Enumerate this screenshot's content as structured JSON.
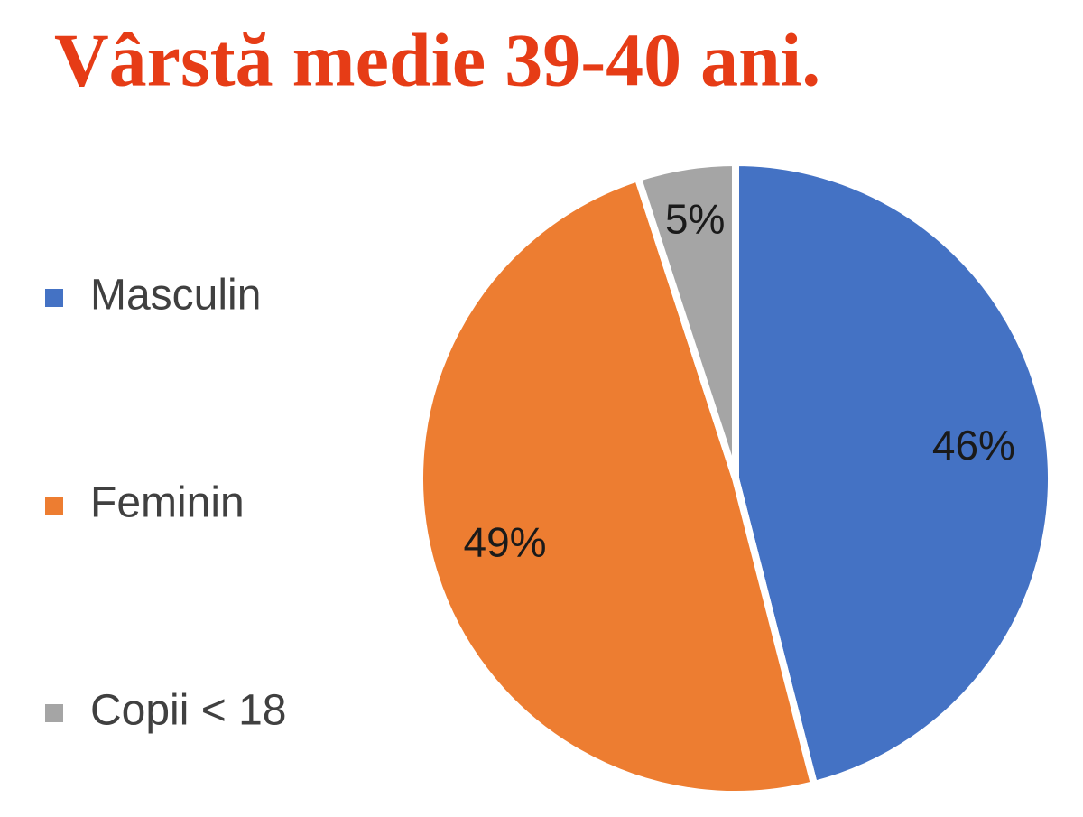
{
  "chart_data": {
    "type": "pie",
    "title": "Vârstă medie 39-40 ani.",
    "categories": [
      "Masculin",
      "Feminin",
      "Copii < 18"
    ],
    "values": [
      46,
      49,
      5
    ],
    "value_labels": [
      "46%",
      "49%",
      "5%"
    ],
    "colors": [
      "#4472c4",
      "#ed7d31",
      "#a5a5a5"
    ],
    "legend": "left"
  }
}
